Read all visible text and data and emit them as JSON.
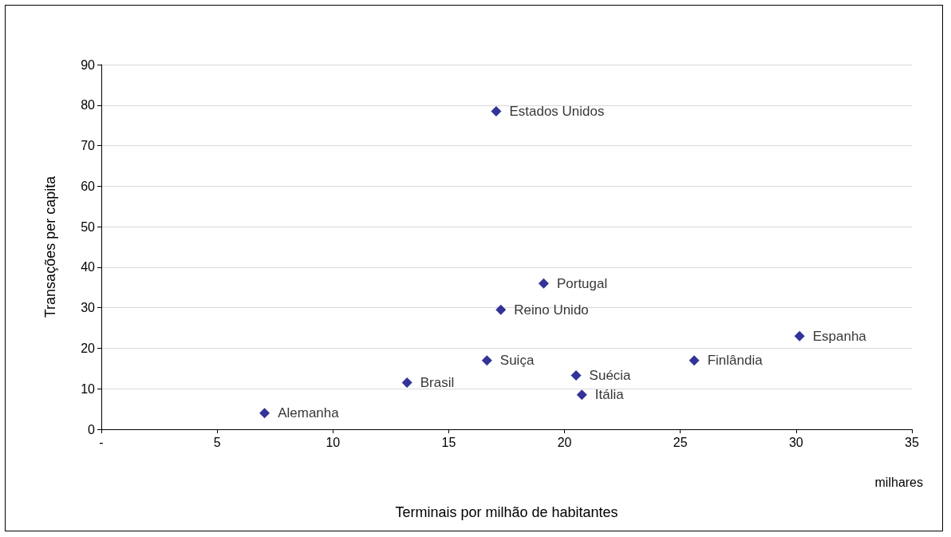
{
  "chart_data": {
    "type": "scatter",
    "xlabel": "Terminais por milhão de habitantes",
    "ylabel": "Transações per capita",
    "annotations": [
      "milhares"
    ],
    "x": [
      17.05,
      19.1,
      17.25,
      30.15,
      16.65,
      25.6,
      13.2,
      20.5,
      20.75,
      7.05
    ],
    "values": [
      78.5,
      36,
      29.5,
      23,
      17,
      17,
      11.5,
      13.3,
      8.5,
      4
    ],
    "value_labels": [
      "Estados Unidos",
      "Portugal",
      "Reino Unido",
      "Espanha",
      "Suiça",
      "Finlândia",
      "Brasil",
      "Suécia",
      "Itália",
      "Alemanha"
    ],
    "color": "#000080",
    "marker": "diamond",
    "xlim": [
      0,
      35
    ],
    "xticks": [
      {
        "value": 0,
        "label": "-"
      },
      5,
      10,
      15,
      20,
      25,
      30,
      35
    ],
    "ylim": [
      0,
      90
    ],
    "yticks": [
      0,
      10,
      20,
      30,
      40,
      50,
      60,
      70,
      80,
      90
    ],
    "grid": "y"
  }
}
